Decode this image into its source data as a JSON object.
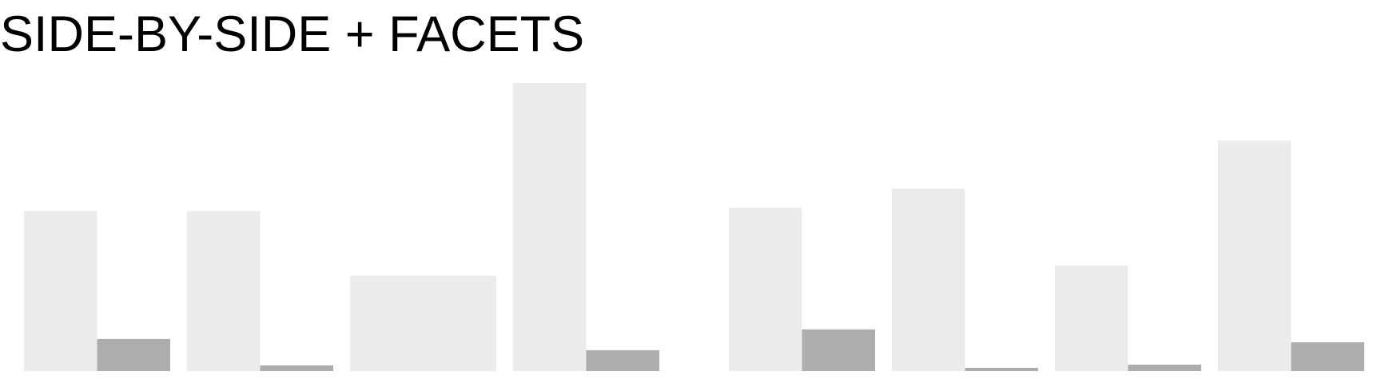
{
  "chart_data": {
    "type": "bar",
    "title": "SIDE-BY-SIDE + FACETS",
    "xlabel": "",
    "ylabel": "",
    "grid": false,
    "legend": "none",
    "facets": [
      {
        "categories": [
          "",
          "",
          "",
          ""
        ],
        "series": [
          {
            "color": "#ececec",
            "values": [
              200,
              200,
              119,
              360
            ]
          },
          {
            "color": "#adadad",
            "values": [
              40,
              7,
              0,
              26
            ]
          }
        ]
      },
      {
        "categories": [
          "",
          "",
          "",
          ""
        ],
        "series": [
          {
            "color": "#ececec",
            "values": [
              204,
              228,
              132,
              288
            ]
          },
          {
            "color": "#adadad",
            "values": [
              52,
              4,
              8,
              36
            ]
          }
        ]
      }
    ],
    "ylim": [
      0,
      360
    ]
  }
}
